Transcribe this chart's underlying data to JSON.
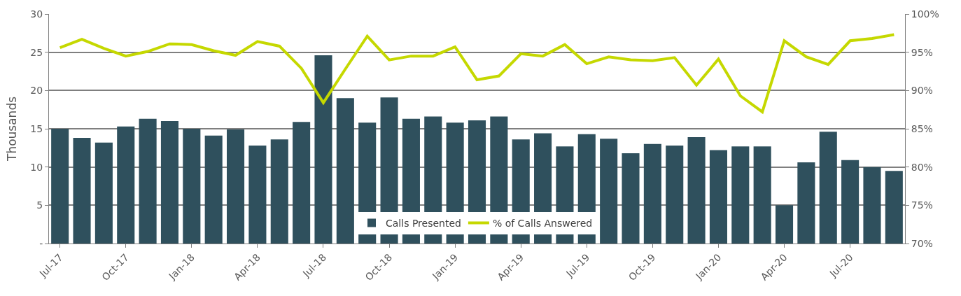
{
  "chart_data": {
    "type": "bar",
    "ylabel": "Thousands",
    "categories": [
      "Jul-17",
      null,
      null,
      "Oct-17",
      null,
      null,
      "Jan-18",
      null,
      null,
      "Apr-18",
      null,
      null,
      "Jul-18",
      null,
      null,
      "Oct-18",
      null,
      null,
      "Jan-19",
      null,
      null,
      "Apr-19",
      null,
      null,
      "Jul-19",
      null,
      null,
      "Oct-19",
      null,
      null,
      "Jan-20",
      null,
      null,
      "Apr-20",
      null,
      null,
      "Jul-20",
      null,
      null
    ],
    "series": [
      {
        "name": "Calls Presented",
        "color": "#2f505d",
        "values": [
          15.0,
          13.8,
          13.2,
          15.3,
          16.3,
          16.0,
          15.0,
          14.1,
          14.9,
          12.8,
          13.6,
          15.9,
          24.6,
          19.0,
          15.8,
          19.1,
          16.3,
          16.6,
          15.8,
          16.1,
          16.6,
          13.6,
          14.4,
          12.7,
          14.3,
          13.7,
          11.8,
          13.0,
          12.8,
          13.9,
          12.2,
          12.7,
          12.7,
          5.0,
          10.6,
          14.6,
          10.9,
          10.0,
          9.5
        ]
      },
      {
        "name": "% of Calls Answered",
        "type": "line",
        "axis": "y2",
        "color": "#c5d800",
        "values": [
          95.6,
          96.7,
          95.5,
          94.5,
          95.1,
          96.1,
          96.0,
          95.2,
          94.6,
          96.4,
          95.8,
          92.9,
          88.4,
          92.8,
          97.1,
          94.0,
          94.5,
          94.5,
          95.7,
          91.4,
          91.9,
          94.8,
          94.5,
          96.0,
          93.5,
          94.4,
          94.0,
          93.9,
          94.3,
          90.7,
          94.1,
          89.3,
          87.2,
          96.5,
          94.4,
          93.4,
          96.5,
          96.8,
          97.3
        ]
      }
    ],
    "ylim": [
      0,
      30
    ],
    "yticks": [
      {
        "value": 0,
        "label": "-"
      },
      5,
      10,
      15,
      20,
      25,
      30
    ],
    "y2lim": [
      70,
      100
    ],
    "y2ticks": [
      {
        "value": 70,
        "label": "70%"
      },
      {
        "value": 75,
        "label": "75%"
      },
      {
        "value": 80,
        "label": "80%"
      },
      {
        "value": 85,
        "label": "85%"
      },
      {
        "value": 90,
        "label": "90%"
      },
      {
        "value": 95,
        "label": "95%"
      },
      {
        "value": 100,
        "label": "100%"
      }
    ],
    "grid": "y",
    "legend": "bottom",
    "marker": "none",
    "line_style": "solid"
  }
}
